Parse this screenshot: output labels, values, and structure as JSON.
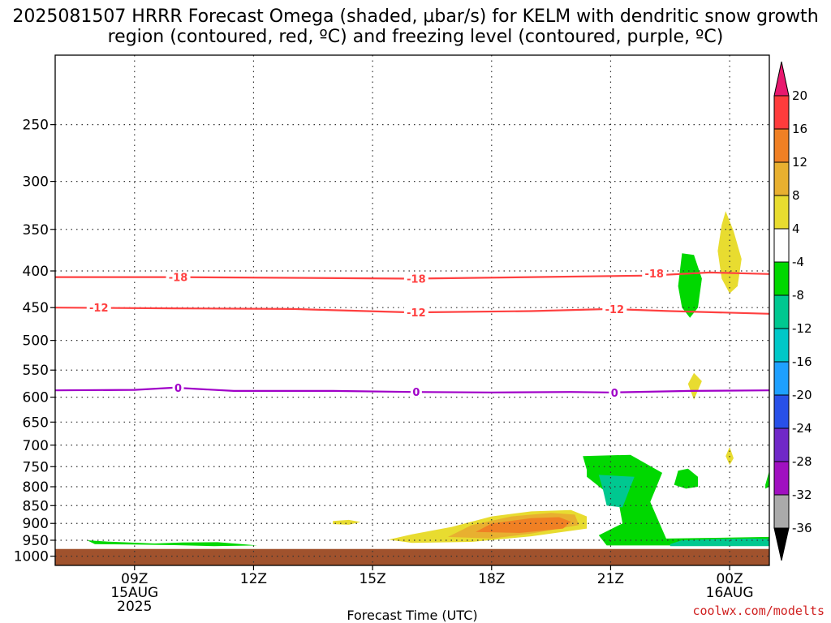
{
  "title": "2025081507 HRRR Forecast Omega (shaded, µbar/s) for KELM with dendritic snow growth region (contoured, red, ºC) and freezing level (contoured, purple, ºC)",
  "credit": "coolwx.com/modelts",
  "chart_data": {
    "type": "heatmap",
    "title": "2025081507 HRRR Forecast Omega (shaded, µbar/s) for KELM with dendritic snow growth region (contoured, red, ºC) and freezing level (contoured, purple, ºC)",
    "xlabel": "Forecast Time (UTC)",
    "ylabel": "",
    "x_ticks": [
      {
        "label": "09Z",
        "sub1": "15AUG",
        "sub2": "2025",
        "hour": 9
      },
      {
        "label": "12Z",
        "sub1": "",
        "sub2": "",
        "hour": 12
      },
      {
        "label": "15Z",
        "sub1": "",
        "sub2": "",
        "hour": 15
      },
      {
        "label": "18Z",
        "sub1": "",
        "sub2": "",
        "hour": 18
      },
      {
        "label": "21Z",
        "sub1": "",
        "sub2": "",
        "hour": 21
      },
      {
        "label": "00Z",
        "sub1": "16AUG",
        "sub2": "",
        "hour": 24
      }
    ],
    "xlim_hours": [
      7,
      25
    ],
    "y_ticks": [
      250,
      300,
      350,
      400,
      450,
      500,
      550,
      600,
      650,
      700,
      750,
      800,
      850,
      900,
      950,
      1000
    ],
    "ylim_hPa": [
      200,
      1030
    ],
    "y_scale": "log-pressure",
    "grid": true,
    "colorbar": {
      "labels": [
        "20",
        "16",
        "12",
        "8",
        "4",
        "-4",
        "-8",
        "-12",
        "-16",
        "-20",
        "-24",
        "-28",
        "-32",
        "-36"
      ],
      "colors": [
        "#e8186e",
        "#ff3c3c",
        "#f08024",
        "#e8b030",
        "#e8dc30",
        "#ffffff",
        "#00d800",
        "#00c890",
        "#00c8c8",
        "#1ea0ff",
        "#2850e8",
        "#7028c8",
        "#a010c0",
        "#aaaaaa",
        "#000000"
      ]
    },
    "contours": [
      {
        "label": "-18",
        "color": "#ff4040",
        "points": [
          [
            7,
            408
          ],
          [
            10,
            408
          ],
          [
            13,
            409
          ],
          [
            16,
            410
          ],
          [
            19,
            408
          ],
          [
            22,
            406
          ],
          [
            23.5,
            402
          ],
          [
            25,
            404
          ]
        ]
      },
      {
        "label": "-12",
        "color": "#ff4040",
        "points": [
          [
            7,
            450
          ],
          [
            10,
            451
          ],
          [
            13,
            452
          ],
          [
            16,
            457
          ],
          [
            19,
            455
          ],
          [
            21,
            452
          ],
          [
            22.5,
            455
          ],
          [
            25,
            459
          ]
        ]
      },
      {
        "label": "0",
        "color": "#a000c8",
        "points": [
          [
            7,
            587
          ],
          [
            9,
            586
          ],
          [
            10,
            582
          ],
          [
            11.5,
            588
          ],
          [
            14,
            588
          ],
          [
            16,
            590
          ],
          [
            18,
            591
          ],
          [
            20,
            590
          ],
          [
            21,
            591
          ],
          [
            23,
            588
          ],
          [
            25,
            587
          ]
        ]
      }
    ],
    "contour_labels": [
      {
        "text": "-18",
        "x": 10.1,
        "p": 408
      },
      {
        "text": "-18",
        "x": 16.1,
        "p": 410
      },
      {
        "text": "-18",
        "x": 22.1,
        "p": 403
      },
      {
        "text": "-12",
        "x": 8.1,
        "p": 450
      },
      {
        "text": "-12",
        "x": 16.1,
        "p": 457
      },
      {
        "text": "-12",
        "x": 21.1,
        "p": 452
      },
      {
        "text": "0",
        "x": 10.1,
        "p": 582
      },
      {
        "text": "0",
        "x": 16.1,
        "p": 590
      },
      {
        "text": "0",
        "x": 21.1,
        "p": 591
      }
    ],
    "ground_pressure_hPa": 977,
    "shaded_regions": [
      {
        "value": 4,
        "color": "#e8dc30",
        "points": [
          [
            15.4,
            948
          ],
          [
            16,
            932
          ],
          [
            17,
            910
          ],
          [
            18,
            880
          ],
          [
            19,
            866
          ],
          [
            20,
            862
          ],
          [
            20.4,
            880
          ],
          [
            20.4,
            915
          ],
          [
            19,
            938
          ],
          [
            17.5,
            955
          ],
          [
            16,
            958
          ]
        ]
      },
      {
        "value": 8,
        "color": "#e8b030",
        "points": [
          [
            16.9,
            940
          ],
          [
            17.5,
            905
          ],
          [
            18.5,
            880
          ],
          [
            19.5,
            870
          ],
          [
            20.1,
            875
          ],
          [
            20.2,
            905
          ],
          [
            19,
            930
          ],
          [
            18,
            945
          ]
        ]
      },
      {
        "value": 12,
        "color": "#f08024",
        "points": [
          [
            17.6,
            925
          ],
          [
            18,
            900
          ],
          [
            19,
            885
          ],
          [
            19.7,
            882
          ],
          [
            20,
            895
          ],
          [
            19.8,
            915
          ],
          [
            18.7,
            928
          ]
        ]
      },
      {
        "value": 4,
        "color": "#e8dc30",
        "points": [
          [
            14.0,
            893
          ],
          [
            14.4,
            890
          ],
          [
            14.7,
            896
          ],
          [
            14.4,
            904
          ],
          [
            14.0,
            902
          ]
        ]
      },
      {
        "value": 4,
        "color": "#e8dc30",
        "points": [
          [
            23.9,
            330
          ],
          [
            24.1,
            352
          ],
          [
            24.3,
            385
          ],
          [
            24.2,
            420
          ],
          [
            24.0,
            430
          ],
          [
            23.8,
            410
          ],
          [
            23.7,
            375
          ],
          [
            23.8,
            345
          ]
        ]
      },
      {
        "value": 4,
        "color": "#e8dc30",
        "points": [
          [
            23.1,
            555
          ],
          [
            23.3,
            570
          ],
          [
            23.1,
            605
          ],
          [
            22.95,
            575
          ]
        ]
      },
      {
        "value": 4,
        "color": "#e8dc30",
        "points": [
          [
            24.0,
            704
          ],
          [
            24.1,
            730
          ],
          [
            24.0,
            746
          ],
          [
            23.9,
            725
          ]
        ]
      },
      {
        "value": -4,
        "color": "#00d800",
        "points": [
          [
            7.8,
            950
          ],
          [
            8.3,
            954
          ],
          [
            9.5,
            960
          ],
          [
            10.2,
            957
          ],
          [
            11.1,
            956
          ],
          [
            12.1,
            966
          ],
          [
            11,
            968
          ],
          [
            10,
            965
          ],
          [
            9,
            963
          ],
          [
            8,
            962
          ]
        ]
      },
      {
        "value": -4,
        "color": "#00d800",
        "points": [
          [
            22.8,
            378
          ],
          [
            23.1,
            380
          ],
          [
            23.3,
            410
          ],
          [
            23.2,
            450
          ],
          [
            23.0,
            465
          ],
          [
            22.8,
            450
          ],
          [
            22.7,
            420
          ]
        ]
      },
      {
        "value": -4,
        "color": "#00d800",
        "points": [
          [
            22.7,
            760
          ],
          [
            22.95,
            755
          ],
          [
            23.2,
            775
          ],
          [
            23.2,
            800
          ],
          [
            22.9,
            805
          ],
          [
            22.6,
            795
          ]
        ]
      },
      {
        "value": -4,
        "color": "#00d800",
        "points": [
          [
            25,
            760
          ],
          [
            25,
            800
          ],
          [
            24.9,
            805
          ],
          [
            24.9,
            795
          ]
        ]
      },
      {
        "value": -4,
        "color": "#00d800",
        "points": [
          [
            20.3,
            725
          ],
          [
            21.5,
            722
          ],
          [
            22.3,
            765
          ],
          [
            22,
            840
          ],
          [
            22.4,
            945
          ],
          [
            25,
            940
          ],
          [
            25,
            966
          ],
          [
            20.9,
            966
          ],
          [
            20.7,
            935
          ],
          [
            21.3,
            900
          ],
          [
            21.2,
            840
          ],
          [
            20.4,
            775
          ],
          [
            20.4,
            758
          ]
        ]
      },
      {
        "value": -8,
        "color": "#00c890",
        "points": [
          [
            20.7,
            770
          ],
          [
            21.6,
            775
          ],
          [
            21.5,
            800
          ],
          [
            21.3,
            855
          ],
          [
            20.9,
            850
          ],
          [
            20.8,
            805
          ]
        ]
      },
      {
        "value": -8,
        "color": "#00c890",
        "points": [
          [
            22.5,
            962
          ],
          [
            22.8,
            950
          ],
          [
            23.7,
            946
          ],
          [
            24.5,
            945
          ],
          [
            25,
            946
          ],
          [
            25,
            968
          ],
          [
            22.5,
            968
          ]
        ]
      }
    ]
  }
}
